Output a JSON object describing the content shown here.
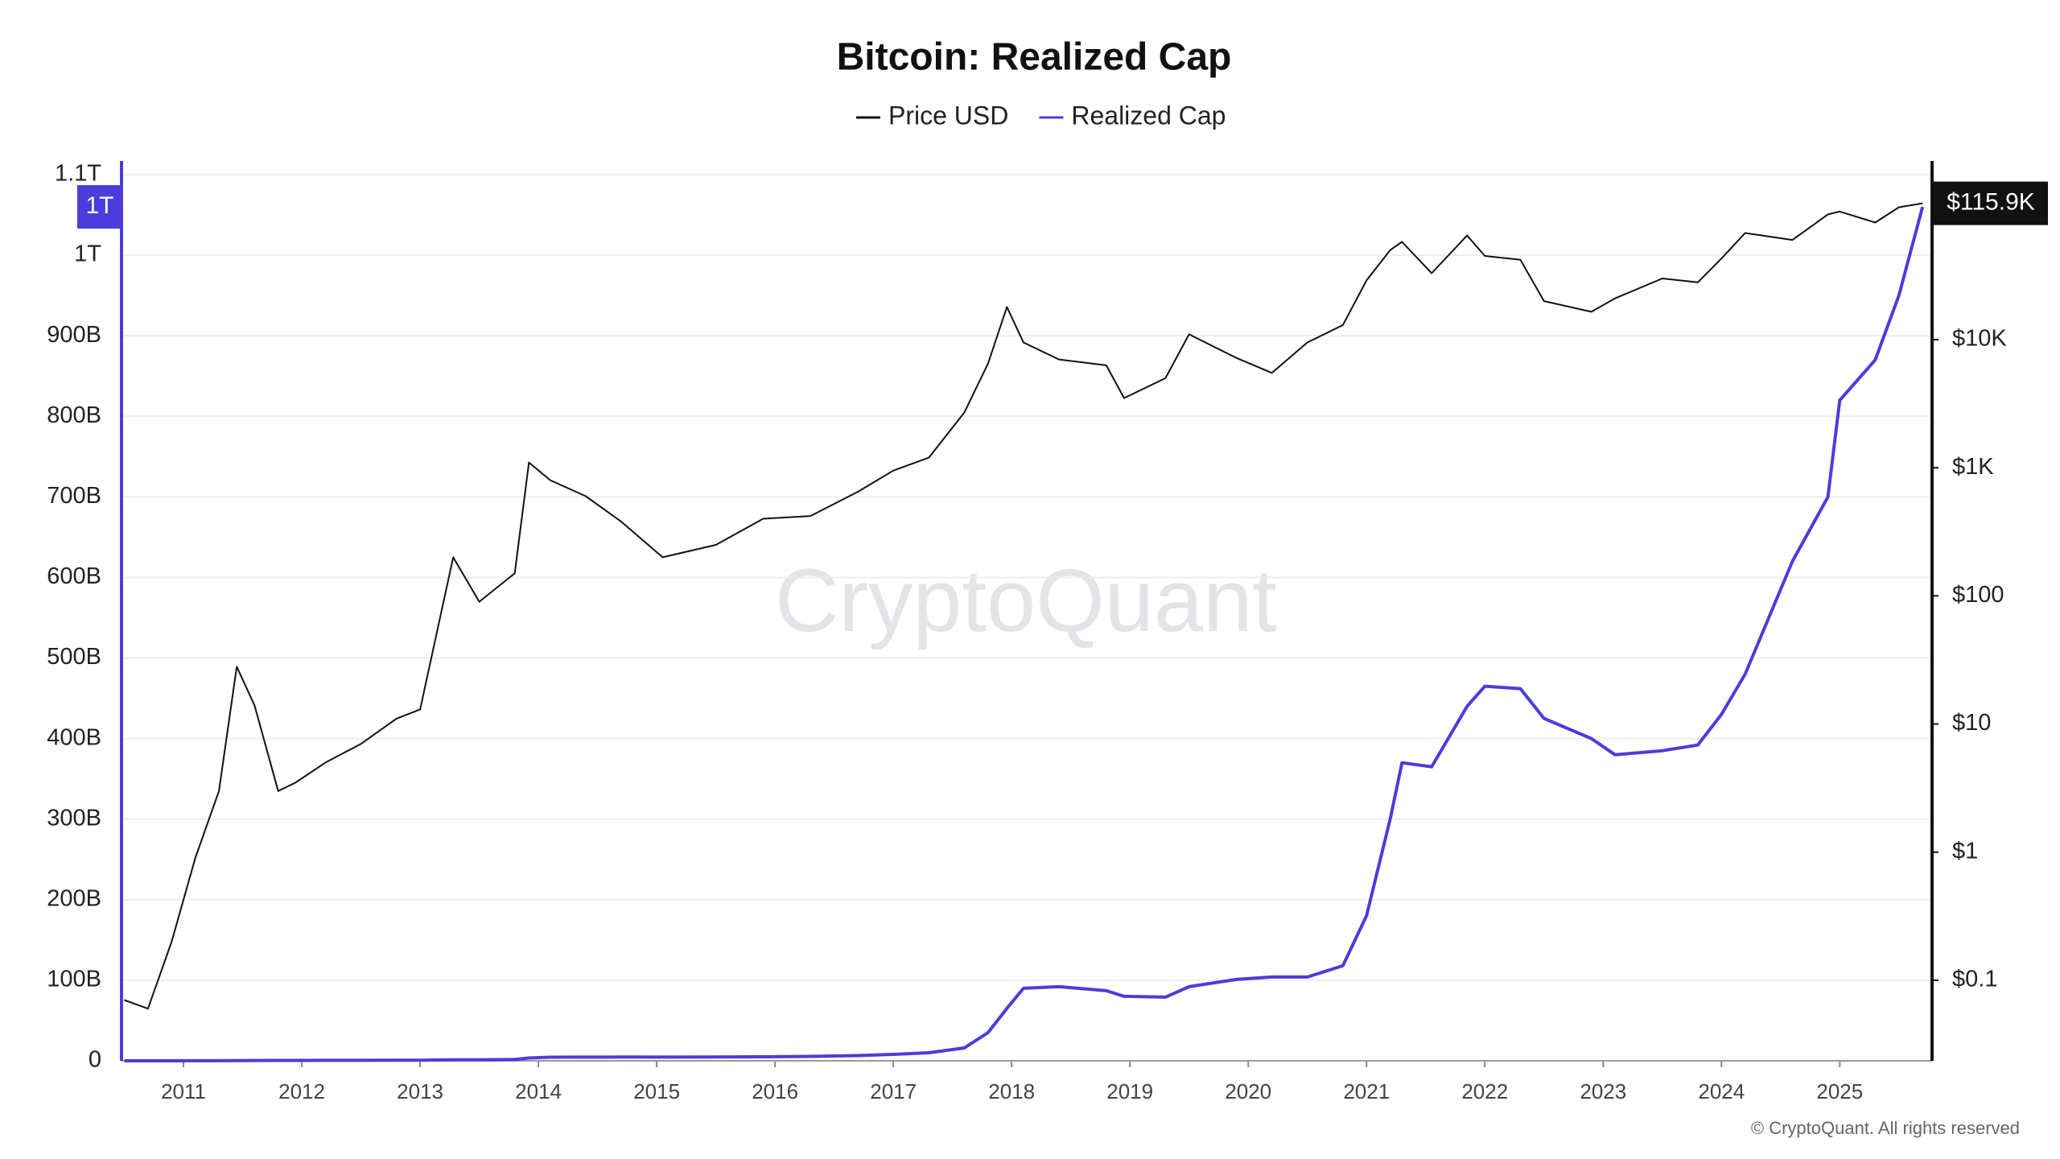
{
  "chart_data": {
    "type": "line",
    "title": "Bitcoin: Realized Cap",
    "watermark": "CryptoQuant",
    "copyright": "© CryptoQuant. All rights reserved",
    "x": [
      2010.5,
      2010.7,
      2010.9,
      2011.1,
      2011.3,
      2011.45,
      2011.6,
      2011.8,
      2011.95,
      2012.2,
      2012.5,
      2012.8,
      2013.0,
      2013.28,
      2013.5,
      2013.8,
      2013.92,
      2014.1,
      2014.4,
      2014.7,
      2015.05,
      2015.5,
      2015.9,
      2016.3,
      2016.7,
      2017.0,
      2017.3,
      2017.6,
      2017.8,
      2017.96,
      2018.1,
      2018.4,
      2018.8,
      2018.95,
      2019.3,
      2019.5,
      2019.9,
      2020.2,
      2020.5,
      2020.8,
      2021.0,
      2021.2,
      2021.3,
      2021.55,
      2021.85,
      2022.0,
      2022.3,
      2022.5,
      2022.9,
      2023.1,
      2023.5,
      2023.8,
      2024.0,
      2024.2,
      2024.6,
      2024.9,
      2025.0,
      2025.3,
      2025.5,
      2025.7
    ],
    "xlim": [
      2010.476,
      2025.78
    ],
    "xticks": [
      2011,
      2012,
      2013,
      2014,
      2015,
      2016,
      2017,
      2018,
      2019,
      2020,
      2021,
      2022,
      2023,
      2024,
      2025
    ],
    "ylim": [
      0,
      1100000000000.0
    ],
    "yticks": [
      {
        "value": 0,
        "label": "0"
      },
      {
        "value": 100000000000.0,
        "label": "100B"
      },
      {
        "value": 200000000000.0,
        "label": "200B"
      },
      {
        "value": 300000000000.0,
        "label": "300B"
      },
      {
        "value": 400000000000.0,
        "label": "400B"
      },
      {
        "value": 500000000000.0,
        "label": "500B"
      },
      {
        "value": 600000000000.0,
        "label": "600B"
      },
      {
        "value": 700000000000.0,
        "label": "700B"
      },
      {
        "value": 800000000000.0,
        "label": "800B"
      },
      {
        "value": 900000000000.0,
        "label": "900B"
      },
      {
        "value": 1000000000000.0,
        "label": "1T"
      },
      {
        "value": 1100000000000.0,
        "label": "1.1T"
      }
    ],
    "y2lim": [
      0.0235,
      194000
    ],
    "y2log": true,
    "y2ticks": [
      {
        "value": 0.1,
        "label": "$0.1"
      },
      {
        "value": 1,
        "label": "$1"
      },
      {
        "value": 10,
        "label": "$10"
      },
      {
        "value": 100,
        "label": "$100"
      },
      {
        "value": 1000,
        "label": "$1K"
      },
      {
        "value": 10000,
        "label": "$10K"
      }
    ],
    "grid": true,
    "series": [
      {
        "name": "Price USD",
        "color": "#111111",
        "axis": "y2",
        "end_label": "$115.9K",
        "values": [
          0.07,
          0.06,
          0.2,
          0.9,
          3,
          28,
          14,
          3,
          3.5,
          5,
          7,
          11,
          13,
          200,
          90,
          150,
          1100,
          800,
          600,
          380,
          200,
          250,
          400,
          420,
          650,
          950,
          1200,
          2700,
          6500,
          18000,
          9500,
          7000,
          6300,
          3500,
          5000,
          11000,
          7200,
          5500,
          9500,
          13000,
          29000,
          50000,
          58000,
          33000,
          65000,
          45000,
          42000,
          20000,
          16500,
          21000,
          30000,
          28000,
          43000,
          68000,
          60000,
          95000,
          100000,
          82000,
          108000,
          115900
        ]
      },
      {
        "name": "Realized Cap",
        "color": "#4a3ddb",
        "end_label": "1T",
        "values": [
          0,
          10000000.0,
          20000000.0,
          50000000.0,
          100000000.0,
          300000000.0,
          400000000.0,
          450000000.0,
          500000000.0,
          550000000.0,
          600000000.0,
          700000000.0,
          750000000.0,
          1200000000.0,
          1300000000.0,
          1600000000.0,
          3500000000.0,
          4500000000.0,
          4600000000.0,
          4700000000.0,
          4600000000.0,
          4700000000.0,
          5000000000.0,
          5500000000.0,
          6500000000.0,
          8000000000.0,
          10000000000.0,
          16000000000.0,
          35000000000.0,
          65000000000.0,
          90000000000.0,
          92000000000.0,
          87000000000.0,
          80000000000.0,
          79000000000.0,
          92000000000.0,
          101000000000.0,
          104000000000.0,
          104000000000.0,
          118000000000.0,
          180000000000.0,
          300000000000.0,
          370000000000.0,
          365000000000.0,
          440000000000.0,
          465000000000.0,
          462000000000.0,
          425000000000.0,
          400000000000.0,
          380000000000.0,
          385000000000.0,
          392000000000.0,
          430000000000.0,
          480000000000.0,
          620000000000.0,
          700000000000.0,
          820000000000.0,
          870000000000.0,
          950000000000.0,
          1060000000000.0
        ]
      }
    ]
  }
}
